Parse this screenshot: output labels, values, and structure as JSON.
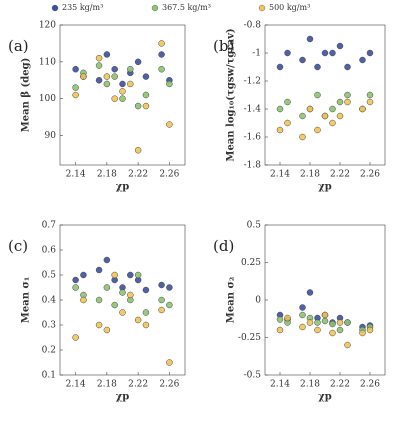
{
  "legend": [
    {
      "name": "235 kg/m³",
      "color": "#3d4f9f"
    },
    {
      "name": "367.5 kg/m³",
      "color": "#8cc270"
    },
    {
      "name": "500 kg/m³",
      "color": "#f1c353"
    }
  ],
  "chart_data": [
    {
      "type": "scatter",
      "label": "(a)",
      "ylabel": "Mean β (deg)",
      "xlabel": "χp",
      "xlim": [
        2.12,
        2.28
      ],
      "xticks": [
        2.14,
        2.18,
        2.22,
        2.26
      ],
      "ylim": [
        82,
        120
      ],
      "yticks": [
        90,
        100,
        110,
        120
      ],
      "series": [
        {
          "x": [
            2.14,
            2.15,
            2.17,
            2.18,
            2.19,
            2.2,
            2.21,
            2.22,
            2.23,
            2.25,
            2.26
          ],
          "values": [
            108,
            106,
            105,
            112,
            108,
            104,
            107,
            110,
            106,
            112,
            105
          ]
        },
        {
          "x": [
            2.14,
            2.15,
            2.17,
            2.18,
            2.19,
            2.2,
            2.21,
            2.22,
            2.23,
            2.25,
            2.26
          ],
          "values": [
            103,
            107,
            109,
            104,
            106,
            100,
            108,
            98,
            101,
            108,
            104
          ]
        },
        {
          "x": [
            2.14,
            2.15,
            2.17,
            2.18,
            2.19,
            2.2,
            2.21,
            2.22,
            2.23,
            2.25,
            2.26
          ],
          "values": [
            101,
            106,
            111,
            106,
            100,
            102,
            104,
            86,
            98,
            115,
            93
          ]
        }
      ]
    },
    {
      "type": "scatter",
      "label": "(b)",
      "ylabel": "Mean log₁₀(τgsw/τgrav)",
      "xlabel": "χp",
      "xlim": [
        2.12,
        2.28
      ],
      "xticks": [
        2.14,
        2.18,
        2.22,
        2.26
      ],
      "ylim": [
        -1.8,
        -0.8
      ],
      "yticks": [
        -1.8,
        -1.6,
        -1.4,
        -1.2,
        -1,
        -0.8
      ],
      "series": [
        {
          "x": [
            2.14,
            2.15,
            2.17,
            2.18,
            2.19,
            2.2,
            2.21,
            2.22,
            2.23,
            2.25,
            2.26
          ],
          "values": [
            -1.1,
            -1.0,
            -1.05,
            -0.9,
            -1.1,
            -1.0,
            -1.0,
            -0.95,
            -1.1,
            -1.05,
            -1.0
          ]
        },
        {
          "x": [
            2.14,
            2.15,
            2.17,
            2.18,
            2.19,
            2.2,
            2.21,
            2.22,
            2.23,
            2.25,
            2.26
          ],
          "values": [
            -1.4,
            -1.35,
            -1.45,
            -1.4,
            -1.3,
            -1.45,
            -1.4,
            -1.35,
            -1.3,
            -1.4,
            -1.3
          ]
        },
        {
          "x": [
            2.14,
            2.15,
            2.17,
            2.18,
            2.19,
            2.2,
            2.21,
            2.22,
            2.23,
            2.25,
            2.26
          ],
          "values": [
            -1.55,
            -1.5,
            -1.6,
            -1.4,
            -1.55,
            -1.45,
            -1.5,
            -1.45,
            -1.35,
            -1.4,
            -1.35
          ]
        }
      ]
    },
    {
      "type": "scatter",
      "label": "(c)",
      "ylabel": "Mean σ₁",
      "xlabel": "χp",
      "xlim": [
        2.12,
        2.28
      ],
      "xticks": [
        2.14,
        2.18,
        2.22,
        2.26
      ],
      "ylim": [
        0.1,
        0.7
      ],
      "yticks": [
        0.1,
        0.2,
        0.3,
        0.4,
        0.5,
        0.6,
        0.7
      ],
      "series": [
        {
          "x": [
            2.14,
            2.15,
            2.17,
            2.18,
            2.19,
            2.2,
            2.21,
            2.22,
            2.23,
            2.25,
            2.26
          ],
          "values": [
            0.48,
            0.5,
            0.52,
            0.56,
            0.48,
            0.45,
            0.5,
            0.48,
            0.44,
            0.46,
            0.45
          ]
        },
        {
          "x": [
            2.14,
            2.15,
            2.17,
            2.18,
            2.19,
            2.2,
            2.21,
            2.22,
            2.23,
            2.25,
            2.26
          ],
          "values": [
            0.45,
            0.42,
            0.4,
            0.45,
            0.38,
            0.43,
            0.4,
            0.5,
            0.35,
            0.4,
            0.38
          ]
        },
        {
          "x": [
            2.14,
            2.15,
            2.17,
            2.18,
            2.19,
            2.2,
            2.21,
            2.22,
            2.23,
            2.25,
            2.26
          ],
          "values": [
            0.25,
            0.4,
            0.3,
            0.28,
            0.5,
            0.35,
            0.42,
            0.32,
            0.3,
            0.36,
            0.15
          ]
        }
      ]
    },
    {
      "type": "scatter",
      "label": "(d)",
      "ylabel": "Mean σ₂",
      "xlabel": "χp",
      "xlim": [
        2.12,
        2.28
      ],
      "xticks": [
        2.14,
        2.18,
        2.22,
        2.26
      ],
      "ylim": [
        -0.5,
        0.5
      ],
      "yticks": [
        -0.5,
        -0.25,
        0,
        0.25,
        0.5
      ],
      "series": [
        {
          "x": [
            2.14,
            2.15,
            2.17,
            2.18,
            2.19,
            2.2,
            2.21,
            2.22,
            2.23,
            2.25,
            2.26
          ],
          "values": [
            -0.1,
            -0.13,
            -0.05,
            0.05,
            -0.12,
            -0.1,
            -0.15,
            -0.12,
            -0.15,
            -0.18,
            -0.17
          ]
        },
        {
          "x": [
            2.14,
            2.15,
            2.17,
            2.18,
            2.19,
            2.2,
            2.21,
            2.22,
            2.23,
            2.25,
            2.26
          ],
          "values": [
            -0.13,
            -0.15,
            -0.1,
            -0.12,
            -0.15,
            -0.14,
            -0.16,
            -0.2,
            -0.15,
            -0.2,
            -0.18
          ]
        },
        {
          "x": [
            2.14,
            2.15,
            2.17,
            2.18,
            2.19,
            2.2,
            2.21,
            2.22,
            2.23,
            2.25,
            2.26
          ],
          "values": [
            -0.2,
            -0.12,
            -0.18,
            -0.15,
            -0.2,
            -0.1,
            -0.22,
            -0.15,
            -0.3,
            -0.22,
            -0.2
          ]
        }
      ]
    }
  ]
}
